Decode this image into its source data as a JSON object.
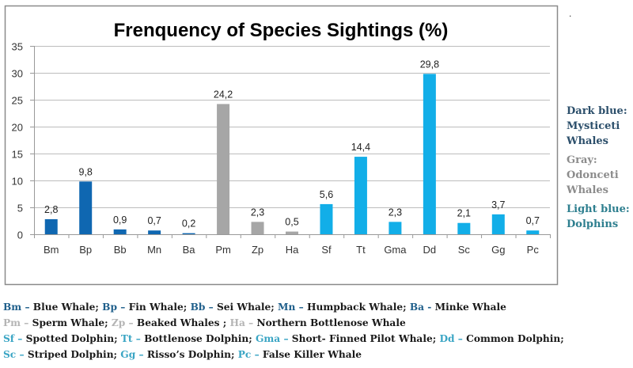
{
  "chart_data": {
    "type": "bar",
    "title": "Frenquency of  Species Sightings (%)",
    "xlabel": "",
    "ylabel": "",
    "ylim": [
      0,
      35
    ],
    "yticks": [
      "0",
      "5",
      "10",
      "15",
      "20",
      "25",
      "30",
      "35"
    ],
    "grid": true,
    "categories": [
      "Bm",
      "Bp",
      "Bb",
      "Mn",
      "Ba",
      "Pm",
      "Zp",
      "Ha",
      "Sf",
      "Tt",
      "Gma",
      "Dd",
      "Sc",
      "Gg",
      "Pc"
    ],
    "values": [
      2.8,
      9.8,
      0.9,
      0.7,
      0.2,
      24.2,
      2.3,
      0.5,
      5.6,
      14.4,
      2.3,
      29.8,
      2.1,
      3.7,
      0.7
    ],
    "data_labels": [
      "2,8",
      "9,8",
      "0,9",
      "0,7",
      "0,2",
      "24,2",
      "2,3",
      "0,5",
      "5,6",
      "14,4",
      "2,3",
      "29,8",
      "2,1",
      "3,7",
      "0,7"
    ],
    "groups": [
      "dark",
      "dark",
      "dark",
      "dark",
      "dark",
      "gray",
      "gray",
      "gray",
      "light",
      "light",
      "light",
      "light",
      "light",
      "light",
      "light"
    ],
    "group_colors": {
      "dark": "#0f67b1",
      "gray": "#a6a6a6",
      "light": "#12aee8"
    }
  },
  "side_legend": {
    "dot": ".",
    "items": [
      {
        "lines": [
          "Dark blue:",
          "Mysticeti",
          "Whales"
        ],
        "color": "#2c4f6b"
      },
      {
        "lines": [
          "Gray:",
          "Odonceti",
          "Whales"
        ],
        "color": "#8c8c8c"
      },
      {
        "lines": [
          "Light blue:",
          "Dolphins"
        ],
        "color": "#2e7f8f"
      }
    ]
  },
  "footnotes": [
    [
      {
        "code": "Bm",
        "sep": " – ",
        "name": "Blue Whale; ",
        "group": "dark"
      },
      {
        "code": "Bp",
        "sep": " – ",
        "name": "Fin Whale; ",
        "group": "dark"
      },
      {
        "code": "Bb",
        "sep": " – ",
        "name": "Sei Whale; ",
        "group": "dark"
      },
      {
        "code": "Mn",
        "sep": " – ",
        "name": "Humpback Whale; ",
        "group": "dark"
      },
      {
        "code": "Ba",
        "sep": " - ",
        "name": "Minke Whale",
        "group": "dark"
      }
    ],
    [
      {
        "code": "Pm",
        "sep": " – ",
        "name": "Sperm Whale; ",
        "group": "gray"
      },
      {
        "code": "Zp",
        "sep": " – ",
        "name": "Beaked Whales ; ",
        "group": "gray"
      },
      {
        "code": "Ha",
        "sep": " – ",
        "name": "Northern Bottlenose Whale",
        "group": "gray"
      }
    ],
    [
      {
        "code": "Sf",
        "sep": " – ",
        "name": "Spotted Dolphin; ",
        "group": "light"
      },
      {
        "code": "Tt",
        "sep": " – ",
        "name": "Bottlenose Dolphin; ",
        "group": "light"
      },
      {
        "code": "Gma",
        "sep": " – ",
        "name": "Short- Finned Pilot Whale; ",
        "group": "light"
      },
      {
        "code": "Dd",
        "sep": " – ",
        "name": "Common Dolphin;",
        "group": "light"
      }
    ],
    [
      {
        "code": "Sc",
        "sep": " – ",
        "name": "Striped Dolphin; ",
        "group": "light"
      },
      {
        "code": "Gg",
        "sep": " – ",
        "name": "Risso’s Dolphin; ",
        "group": "light"
      },
      {
        "code": "Pc",
        "sep": " – ",
        "name": "False Killer Whale",
        "group": "light"
      }
    ]
  ]
}
